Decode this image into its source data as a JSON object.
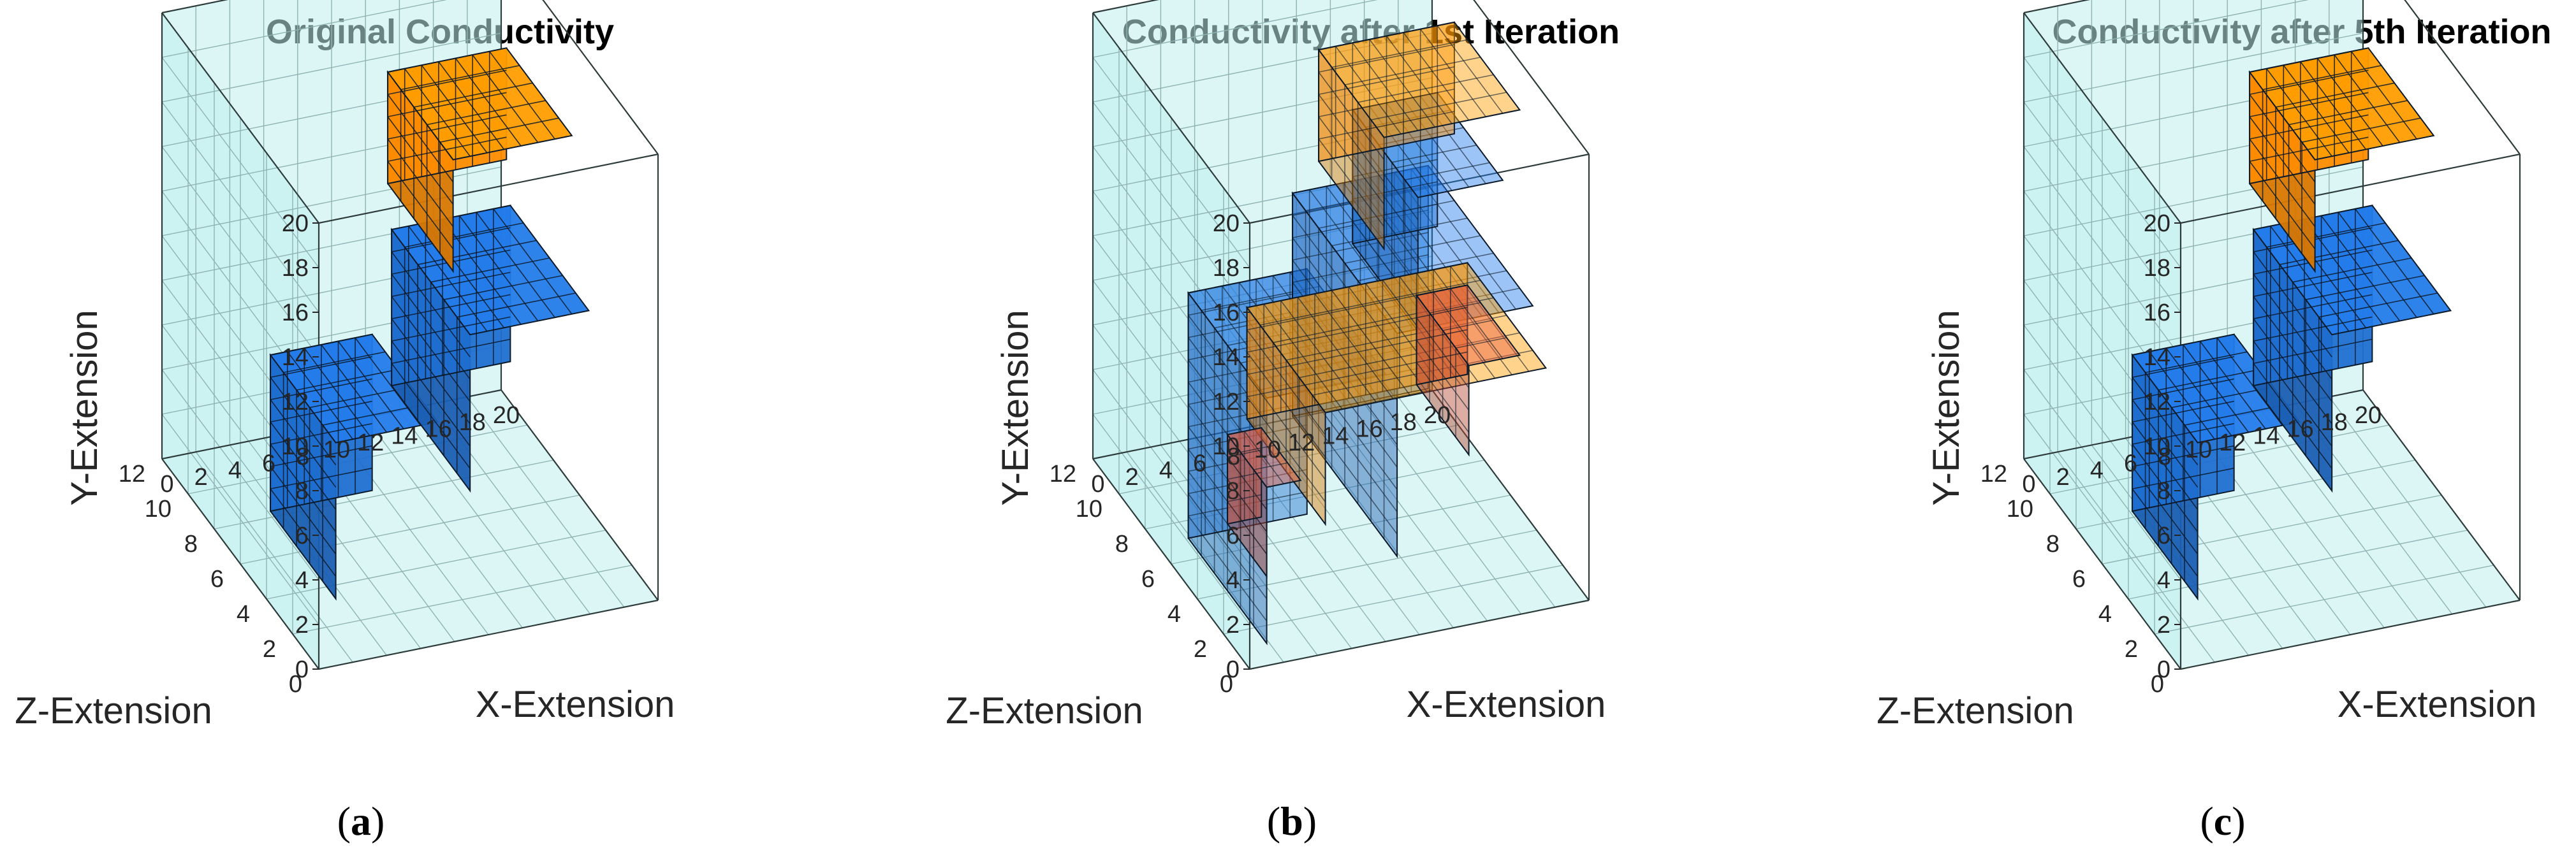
{
  "chart_data": [
    {
      "type": "3d-voxel",
      "title": "Original Conductivity",
      "xlabel": "X-Extension",
      "ylabel": "Y-Extension",
      "zlabel": "Z-Extension",
      "xlim": [
        0,
        20
      ],
      "ylim": [
        0,
        20
      ],
      "zlim": [
        0,
        12
      ],
      "xticks": [
        0,
        2,
        4,
        6,
        8,
        10,
        12,
        14,
        16,
        18,
        20
      ],
      "yticks": [
        0,
        2,
        4,
        6,
        8,
        10,
        12,
        14,
        16,
        18,
        20
      ],
      "zticks": [
        0,
        2,
        4,
        6,
        8,
        10,
        12
      ],
      "blocks": [
        {
          "name": "blue-block-left",
          "color": "#1f6fd1",
          "x": [
            1,
            7
          ],
          "y": [
            3,
            10
          ],
          "z": [
            0,
            5
          ]
        },
        {
          "name": "blue-block-right",
          "color": "#1f6fd1",
          "x": [
            12,
            19
          ],
          "y": [
            3,
            10
          ],
          "z": [
            4,
            10
          ]
        },
        {
          "name": "orange-block",
          "color": "#ff8c00",
          "x": [
            11,
            18
          ],
          "y": [
            13,
            18
          ],
          "z": [
            4,
            9
          ]
        }
      ],
      "caption": "(a)",
      "caption_letter": "a"
    },
    {
      "type": "3d-voxel",
      "title": "Conductivity after 1st Iteration",
      "xlabel": "X-Extension",
      "ylabel": "Y-Extension",
      "zlabel": "Z-Extension",
      "xlim": [
        0,
        20
      ],
      "ylim": [
        0,
        20
      ],
      "zlim": [
        0,
        12
      ],
      "xticks": [
        0,
        2,
        4,
        6,
        8,
        10,
        12,
        14,
        16,
        18,
        20
      ],
      "yticks": [
        0,
        2,
        4,
        6,
        8,
        10,
        12,
        14,
        16,
        18,
        20
      ],
      "zticks": [
        0,
        2,
        4,
        6,
        8,
        10,
        12
      ],
      "blocks": [
        {
          "name": "diffuse-blue-left",
          "color": "#1f6fd1",
          "x": [
            1,
            8
          ],
          "y": [
            1,
            12
          ],
          "z": [
            0,
            6
          ]
        },
        {
          "name": "diffuse-blue-right",
          "color": "#1f6fd1",
          "x": [
            11,
            19
          ],
          "y": [
            1,
            11
          ],
          "z": [
            3,
            11
          ]
        },
        {
          "name": "diffuse-blue-column",
          "color": "#1f6fd1",
          "x": [
            13,
            18
          ],
          "y": [
            10,
            16
          ],
          "z": [
            4,
            9
          ]
        },
        {
          "name": "orange-bridge",
          "color": "#ff8c00",
          "x": [
            6,
            19
          ],
          "y": [
            4,
            9
          ],
          "z": [
            2,
            8
          ]
        },
        {
          "name": "orange-top",
          "color": "#ff8c00",
          "x": [
            11,
            19
          ],
          "y": [
            14,
            19
          ],
          "z": [
            4,
            9
          ]
        },
        {
          "name": "red-spot-left",
          "color": "#d2553a",
          "x": [
            1,
            3
          ],
          "y": [
            4,
            8
          ],
          "z": [
            0,
            3
          ]
        },
        {
          "name": "red-spot-right",
          "color": "#d2553a",
          "x": [
            16,
            19
          ],
          "y": [
            4,
            8
          ],
          "z": [
            4,
            8
          ]
        }
      ],
      "caption": "(b)",
      "caption_letter": "b"
    },
    {
      "type": "3d-voxel",
      "title": "Conductivity after 5th Iteration",
      "xlabel": "X-Extension",
      "ylabel": "Y-Extension",
      "zlabel": "Z-Extension",
      "xlim": [
        0,
        20
      ],
      "ylim": [
        0,
        20
      ],
      "zlim": [
        0,
        12
      ],
      "xticks": [
        0,
        2,
        4,
        6,
        8,
        10,
        12,
        14,
        16,
        18,
        20
      ],
      "yticks": [
        0,
        2,
        4,
        6,
        8,
        10,
        12,
        14,
        16,
        18,
        20
      ],
      "zticks": [
        0,
        2,
        4,
        6,
        8,
        10,
        12
      ],
      "blocks": [
        {
          "name": "blue-block-left",
          "color": "#1f6fd1",
          "x": [
            1,
            7
          ],
          "y": [
            3,
            10
          ],
          "z": [
            0,
            5
          ]
        },
        {
          "name": "blue-block-right",
          "color": "#1f6fd1",
          "x": [
            12,
            19
          ],
          "y": [
            3,
            10
          ],
          "z": [
            4,
            10
          ]
        },
        {
          "name": "orange-block",
          "color": "#ff8c00",
          "x": [
            11,
            18
          ],
          "y": [
            13,
            18
          ],
          "z": [
            4,
            9
          ]
        }
      ],
      "caption": "(c)",
      "caption_letter": "c"
    }
  ],
  "colors": {
    "box_fill": "#bfeeee",
    "blue": "#1f6fd1",
    "orange": "#ff8c00",
    "red": "#d2553a",
    "voxel_edge": "#0c1a2a"
  }
}
